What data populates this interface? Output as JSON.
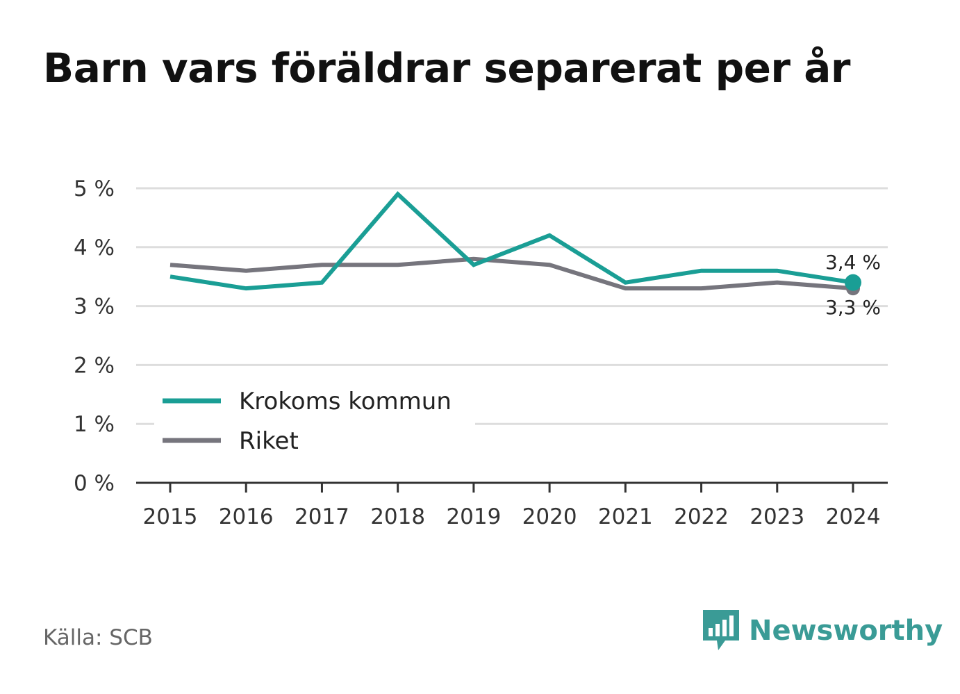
{
  "title": "Barn vars föräldrar separerat per år",
  "source": "Källa: SCB",
  "brand": {
    "name": "Newsworthy",
    "icon": "bar-chart-logo-icon",
    "color": "#3a9b96"
  },
  "chart_data": {
    "type": "line",
    "title": "Barn vars föräldrar separerat per år",
    "x": [
      "2015",
      "2016",
      "2017",
      "2018",
      "2019",
      "2020",
      "2021",
      "2022",
      "2023",
      "2024"
    ],
    "series": [
      {
        "name": "Krokoms kommun",
        "color": "#1a9e95",
        "values": [
          3.5,
          3.3,
          3.4,
          4.9,
          3.7,
          4.2,
          3.4,
          3.6,
          3.6,
          3.4
        ]
      },
      {
        "name": "Riket",
        "color": "#76757d",
        "values": [
          3.7,
          3.6,
          3.7,
          3.7,
          3.8,
          3.7,
          3.3,
          3.3,
          3.4,
          3.3
        ]
      }
    ],
    "ylim": [
      0,
      5
    ],
    "yticks": [
      0,
      1,
      2,
      3,
      4,
      5
    ],
    "ytick_labels": [
      "0 %",
      "1 %",
      "2 %",
      "3 %",
      "4 %",
      "5 %"
    ],
    "end_labels": [
      "3,4 %",
      "3,3 %"
    ],
    "grid": true,
    "legend": "bottom-left"
  }
}
